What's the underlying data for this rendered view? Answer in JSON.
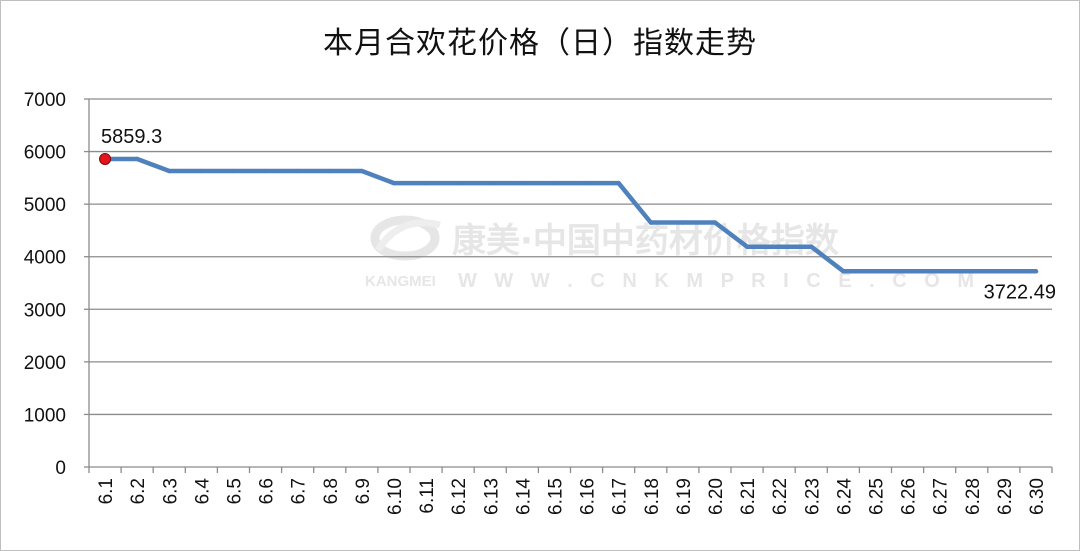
{
  "watermark": {
    "cn": "康美·中国中药材价格指数",
    "brand": "KANGMEI",
    "url": "W W W . C N K M P R I C E . C O M"
  },
  "chart_data": {
    "type": "line",
    "title": "本月合欢花价格（日）指数走势",
    "xlabel": "",
    "ylabel": "",
    "ylim": [
      0,
      7000
    ],
    "yticks": [
      0,
      1000,
      2000,
      3000,
      4000,
      5000,
      6000,
      7000
    ],
    "grid": true,
    "categories": [
      "6.1",
      "6.2",
      "6.3",
      "6.4",
      "6.5",
      "6.6",
      "6.7",
      "6.8",
      "6.9",
      "6.10",
      "6.11",
      "6.12",
      "6.13",
      "6.14",
      "6.15",
      "6.16",
      "6.17",
      "6.18",
      "6.19",
      "6.20",
      "6.21",
      "6.22",
      "6.23",
      "6.24",
      "6.25",
      "6.26",
      "6.27",
      "6.28",
      "6.29",
      "6.30"
    ],
    "series": [
      {
        "color": "#4f81bd",
        "values": [
          5859.3,
          5859.3,
          5630,
          5630,
          5630,
          5630,
          5630,
          5630,
          5630,
          5400,
          5400,
          5400,
          5400,
          5400,
          5400,
          5400,
          5400,
          4650,
          4650,
          4650,
          4190,
          4190,
          4190,
          3722.49,
          3722.49,
          3722.49,
          3722.49,
          3722.49,
          3722.49,
          3722.49
        ]
      }
    ],
    "data_labels": [
      {
        "index": 0,
        "text": "5859.3"
      },
      {
        "index": 29,
        "text": "3722.49"
      }
    ],
    "marker": {
      "index": 0,
      "color": "#e3141b"
    }
  }
}
